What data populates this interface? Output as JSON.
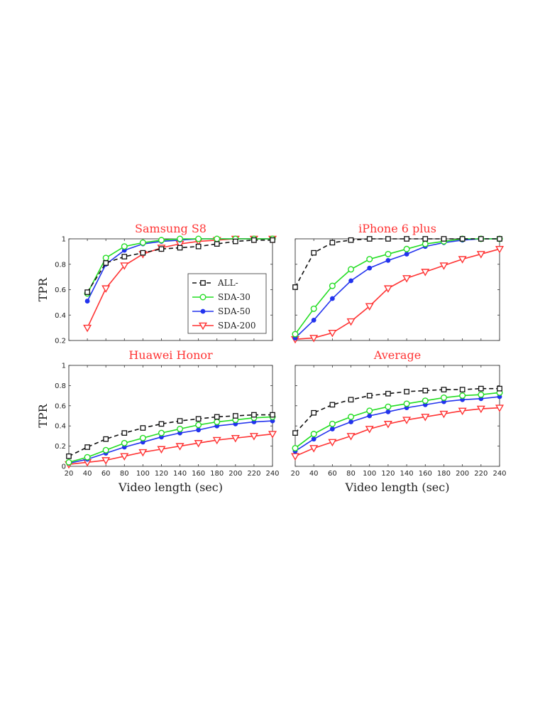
{
  "chart_data": [
    {
      "type": "line",
      "title": "Samsung S8",
      "xlabel": "",
      "ylabel": "TPR",
      "xlim": [
        20,
        240
      ],
      "ylim": [
        0.2,
        1.0
      ],
      "yticks": [
        "0.2",
        "0.4",
        "0.6",
        "0.8",
        "1"
      ],
      "xticks": [],
      "legend": "inside-right",
      "series": [
        {
          "name": "ALL-",
          "color": "#111111",
          "dash": true,
          "marker": "square",
          "x": [
            40,
            60,
            80,
            100,
            120,
            140,
            160,
            180,
            200,
            220,
            240
          ],
          "y": [
            0.58,
            0.81,
            0.86,
            0.89,
            0.92,
            0.93,
            0.94,
            0.96,
            0.98,
            0.99,
            0.99
          ]
        },
        {
          "name": "SDA-30",
          "color": "#22dd22",
          "dash": false,
          "marker": "circle",
          "x": [
            40,
            60,
            80,
            100,
            120,
            140,
            160,
            180,
            200,
            220,
            240
          ],
          "y": [
            0.57,
            0.85,
            0.94,
            0.97,
            0.99,
            1.0,
            1.0,
            1.0,
            1.0,
            1.0,
            1.0
          ]
        },
        {
          "name": "SDA-50",
          "color": "#2233ee",
          "dash": false,
          "marker": "dot",
          "x": [
            40,
            60,
            80,
            100,
            120,
            140,
            160,
            180,
            200,
            220,
            240
          ],
          "y": [
            0.51,
            0.8,
            0.91,
            0.96,
            0.98,
            0.99,
            1.0,
            1.0,
            1.0,
            1.0,
            1.0
          ]
        },
        {
          "name": "SDA-200",
          "color": "#ff3333",
          "dash": false,
          "marker": "triangle",
          "x": [
            40,
            60,
            80,
            100,
            120,
            140,
            160,
            180,
            200,
            220,
            240
          ],
          "y": [
            0.3,
            0.61,
            0.79,
            0.88,
            0.93,
            0.96,
            0.98,
            0.99,
            1.0,
            1.0,
            1.0
          ]
        }
      ]
    },
    {
      "type": "line",
      "title": "iPhone 6 plus",
      "xlabel": "",
      "ylabel": "",
      "xlim": [
        20,
        240
      ],
      "ylim": [
        0.2,
        1.0
      ],
      "yticks": [],
      "xticks": [],
      "series": [
        {
          "name": "ALL-",
          "color": "#111111",
          "dash": true,
          "marker": "square",
          "x": [
            20,
            40,
            60,
            80,
            100,
            120,
            140,
            160,
            180,
            200,
            220,
            240
          ],
          "y": [
            0.62,
            0.89,
            0.97,
            0.99,
            1.0,
            1.0,
            1.0,
            1.0,
            1.0,
            1.0,
            1.0,
            1.0
          ]
        },
        {
          "name": "SDA-30",
          "color": "#22dd22",
          "dash": false,
          "marker": "circle",
          "x": [
            20,
            40,
            60,
            80,
            100,
            120,
            140,
            160,
            180,
            200,
            220,
            240
          ],
          "y": [
            0.25,
            0.45,
            0.63,
            0.76,
            0.84,
            0.88,
            0.92,
            0.96,
            0.98,
            1.0,
            1.0,
            1.0
          ]
        },
        {
          "name": "SDA-50",
          "color": "#2233ee",
          "dash": false,
          "marker": "dot",
          "x": [
            20,
            40,
            60,
            80,
            100,
            120,
            140,
            160,
            180,
            200,
            220,
            240
          ],
          "y": [
            0.22,
            0.36,
            0.53,
            0.67,
            0.77,
            0.83,
            0.88,
            0.94,
            0.97,
            0.99,
            1.0,
            1.0
          ]
        },
        {
          "name": "SDA-200",
          "color": "#ff3333",
          "dash": false,
          "marker": "triangle",
          "x": [
            20,
            40,
            60,
            80,
            100,
            120,
            140,
            160,
            180,
            200,
            220,
            240
          ],
          "y": [
            0.21,
            0.22,
            0.26,
            0.35,
            0.47,
            0.61,
            0.69,
            0.74,
            0.79,
            0.84,
            0.88,
            0.92
          ]
        }
      ]
    },
    {
      "type": "line",
      "title": "Huawei Honor",
      "xlabel": "Video length (sec)",
      "ylabel": "TPR",
      "xlim": [
        20,
        240
      ],
      "ylim": [
        0,
        1.0
      ],
      "yticks": [
        "0",
        "0.2",
        "0.4",
        "0.6",
        "0.8",
        "1"
      ],
      "xticks": [
        "20",
        "40",
        "60",
        "80",
        "100",
        "120",
        "140",
        "160",
        "180",
        "200",
        "220",
        "240"
      ],
      "series": [
        {
          "name": "ALL-",
          "color": "#111111",
          "dash": true,
          "marker": "square",
          "x": [
            20,
            40,
            60,
            80,
            100,
            120,
            140,
            160,
            180,
            200,
            220,
            240
          ],
          "y": [
            0.1,
            0.19,
            0.27,
            0.33,
            0.38,
            0.42,
            0.45,
            0.47,
            0.49,
            0.5,
            0.51,
            0.51
          ]
        },
        {
          "name": "SDA-30",
          "color": "#22dd22",
          "dash": false,
          "marker": "circle",
          "x": [
            20,
            40,
            60,
            80,
            100,
            120,
            140,
            160,
            180,
            200,
            220,
            240
          ],
          "y": [
            0.04,
            0.09,
            0.16,
            0.23,
            0.28,
            0.33,
            0.37,
            0.41,
            0.44,
            0.46,
            0.48,
            0.49
          ]
        },
        {
          "name": "SDA-50",
          "color": "#2233ee",
          "dash": false,
          "marker": "dot",
          "x": [
            20,
            40,
            60,
            80,
            100,
            120,
            140,
            160,
            180,
            200,
            220,
            240
          ],
          "y": [
            0.03,
            0.07,
            0.13,
            0.19,
            0.24,
            0.29,
            0.33,
            0.36,
            0.4,
            0.42,
            0.44,
            0.45
          ]
        },
        {
          "name": "SDA-200",
          "color": "#ff3333",
          "dash": false,
          "marker": "triangle",
          "x": [
            20,
            40,
            60,
            80,
            100,
            120,
            140,
            160,
            180,
            200,
            220,
            240
          ],
          "y": [
            0.02,
            0.04,
            0.06,
            0.1,
            0.14,
            0.17,
            0.2,
            0.23,
            0.26,
            0.28,
            0.3,
            0.32
          ]
        }
      ]
    },
    {
      "type": "line",
      "title": "Average",
      "xlabel": "Video length (sec)",
      "ylabel": "",
      "xlim": [
        20,
        240
      ],
      "ylim": [
        0,
        1.0
      ],
      "yticks": [],
      "xticks": [
        "20",
        "40",
        "60",
        "80",
        "100",
        "120",
        "140",
        "160",
        "180",
        "200",
        "220",
        "240"
      ],
      "series": [
        {
          "name": "ALL-",
          "color": "#111111",
          "dash": true,
          "marker": "square",
          "x": [
            20,
            40,
            60,
            80,
            100,
            120,
            140,
            160,
            180,
            200,
            220,
            240
          ],
          "y": [
            0.33,
            0.53,
            0.61,
            0.66,
            0.7,
            0.72,
            0.74,
            0.75,
            0.76,
            0.76,
            0.77,
            0.77
          ]
        },
        {
          "name": "SDA-30",
          "color": "#22dd22",
          "dash": false,
          "marker": "circle",
          "x": [
            20,
            40,
            60,
            80,
            100,
            120,
            140,
            160,
            180,
            200,
            220,
            240
          ],
          "y": [
            0.18,
            0.32,
            0.42,
            0.49,
            0.55,
            0.59,
            0.62,
            0.65,
            0.68,
            0.7,
            0.71,
            0.73
          ]
        },
        {
          "name": "SDA-50",
          "color": "#2233ee",
          "dash": false,
          "marker": "dot",
          "x": [
            20,
            40,
            60,
            80,
            100,
            120,
            140,
            160,
            180,
            200,
            220,
            240
          ],
          "y": [
            0.15,
            0.27,
            0.37,
            0.44,
            0.5,
            0.54,
            0.58,
            0.61,
            0.64,
            0.66,
            0.67,
            0.69
          ]
        },
        {
          "name": "SDA-200",
          "color": "#ff3333",
          "dash": false,
          "marker": "triangle",
          "x": [
            20,
            40,
            60,
            80,
            100,
            120,
            140,
            160,
            180,
            200,
            220,
            240
          ],
          "y": [
            0.1,
            0.18,
            0.24,
            0.3,
            0.37,
            0.42,
            0.46,
            0.49,
            0.52,
            0.55,
            0.57,
            0.58
          ]
        }
      ]
    }
  ]
}
